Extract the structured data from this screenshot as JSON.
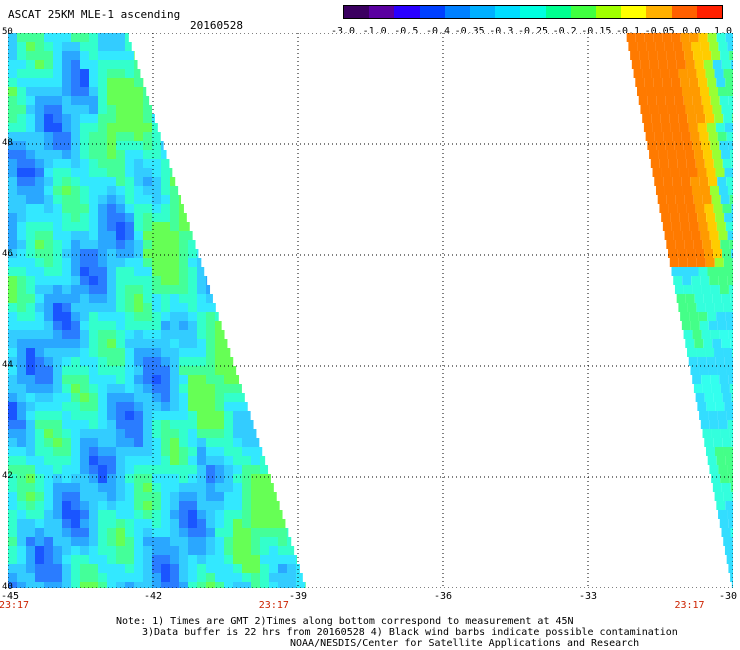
{
  "header": {
    "title": "ASCAT 25KM MLE-1 ascending",
    "date": "20160528"
  },
  "colorbar": {
    "colors": [
      "#3b0060",
      "#5a00a0",
      "#2a00ff",
      "#0040ff",
      "#0080ff",
      "#00b0ff",
      "#00ddff",
      "#00ffe0",
      "#00ff90",
      "#40ff40",
      "#a0ff00",
      "#ffff00",
      "#ffb000",
      "#ff6000",
      "#ff2000"
    ],
    "labels": [
      "-3.0",
      "-1.0",
      "-0.5",
      "-0.4",
      "-0.35",
      "-0.3",
      "-0.25",
      "-0.2",
      "-0.15",
      "-0.1",
      "-0.05",
      "0.0",
      "1.0"
    ]
  },
  "map": {
    "lat_range": [
      40,
      50
    ],
    "lon_range": [
      -45,
      -30
    ],
    "lat_labels": [
      "50",
      "48",
      "46",
      "44",
      "42",
      "40"
    ],
    "lon_labels": [
      "-45",
      "-42",
      "-39",
      "-36",
      "-33",
      "-30"
    ],
    "time_labels": [
      {
        "label": "23:17",
        "lon": -45
      },
      {
        "label": "23:17",
        "lon": -39.5
      },
      {
        "label": "23:17",
        "lon": -30.9
      }
    ],
    "swaths": [
      {
        "name": "west-swath",
        "edge_top_lon": -42.5,
        "edge_bottom_lon": -38.8,
        "base": "#33ccff"
      },
      {
        "name": "east-swath",
        "edge_top_lon": -32.2,
        "edge_bottom_lon": -30,
        "base": "#33ffee"
      }
    ]
  },
  "notes": {
    "line1": "Note: 1) Times are GMT 2)Times along bottom correspond to measurement at 45N",
    "line2": "3)Data buffer is 22 hrs from 20160528 4) Black wind barbs indicate possible contamination",
    "line3": "NOAA/NESDIS/Center for Satellite Applications and Research"
  }
}
